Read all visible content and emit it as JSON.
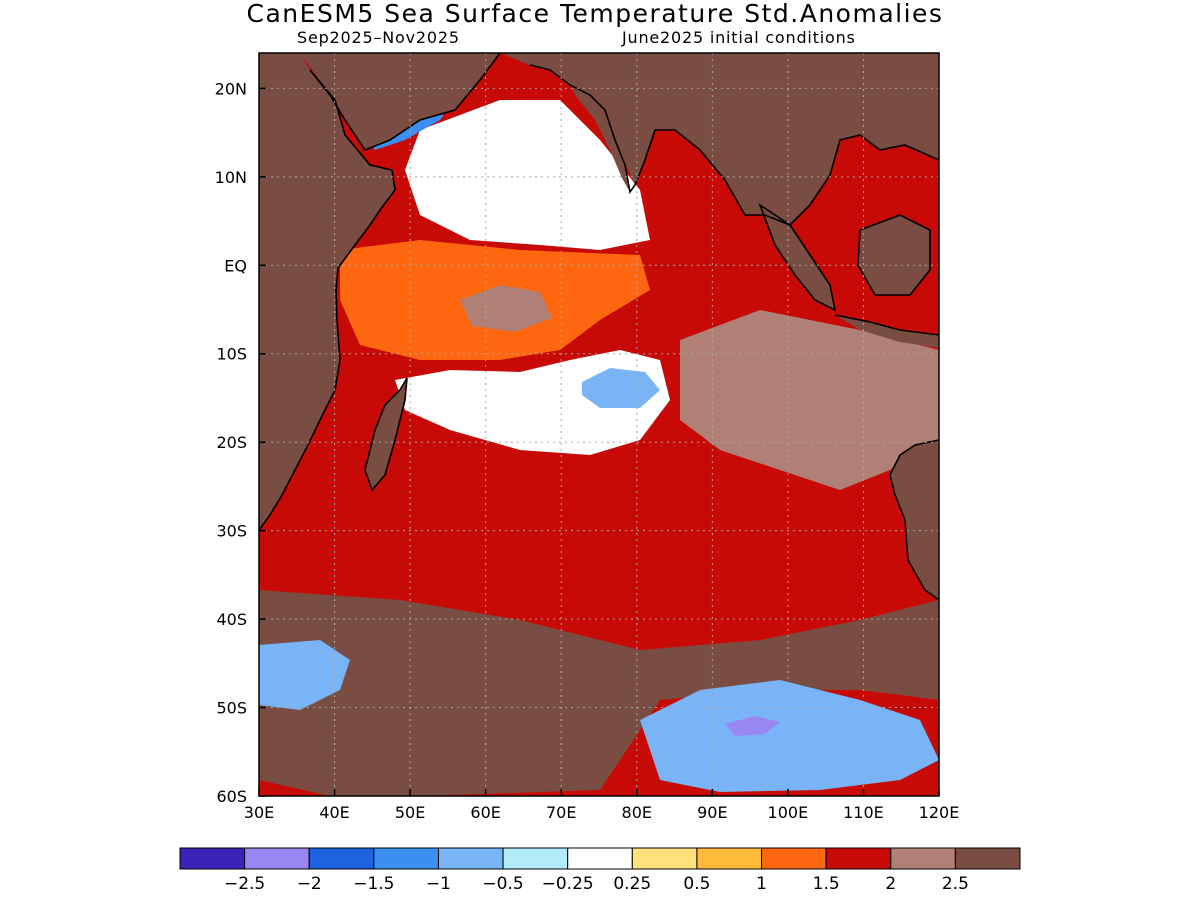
{
  "title": "CanESM5 Sea Surface Temperature Std.Anomalies",
  "subtitle_left": "Sep2025–Nov2025",
  "subtitle_right": "June2025 initial conditions",
  "map": {
    "lon_range": [
      30,
      120
    ],
    "lat_range": [
      -60,
      24
    ],
    "lon_ticks": [
      {
        "value": 30,
        "label": "30E"
      },
      {
        "value": 40,
        "label": "40E"
      },
      {
        "value": 50,
        "label": "50E"
      },
      {
        "value": 60,
        "label": "60E"
      },
      {
        "value": 70,
        "label": "70E"
      },
      {
        "value": 80,
        "label": "80E"
      },
      {
        "value": 90,
        "label": "90E"
      },
      {
        "value": 100,
        "label": "100E"
      },
      {
        "value": 110,
        "label": "110E"
      },
      {
        "value": 120,
        "label": "120E"
      }
    ],
    "lat_ticks": [
      {
        "value": 20,
        "label": "20N"
      },
      {
        "value": 10,
        "label": "10N"
      },
      {
        "value": 0,
        "label": "EQ"
      },
      {
        "value": -10,
        "label": "10S"
      },
      {
        "value": -20,
        "label": "20S"
      },
      {
        "value": -30,
        "label": "30S"
      },
      {
        "value": -40,
        "label": "40S"
      },
      {
        "value": -50,
        "label": "50S"
      },
      {
        "value": -60,
        "label": "60S"
      }
    ],
    "land_color": "#7a4d43",
    "coast_color": "#000000"
  },
  "colorbar": {
    "colors": [
      "#3a23b8",
      "#9a86f2",
      "#1e62e0",
      "#3c8ff0",
      "#78b4f6",
      "#b2ecfb",
      "#ffffff",
      "#ffe07a",
      "#ffba3a",
      "#ff6610",
      "#c80a06",
      "#b07f76",
      "#7a4d43"
    ],
    "labels": [
      "−2.5",
      "−2",
      "−1.5",
      "−1",
      "−0.5",
      "−0.25",
      "0.25",
      "0.5",
      "1",
      "1.5",
      "2",
      "2.5"
    ]
  },
  "anomaly_regions": [
    {
      "name": "basin-background",
      "level": 1.5
    },
    {
      "name": "central-eastern-warm",
      "level": 1.5
    },
    {
      "name": "arabian-sea-cool",
      "level": 0.0
    },
    {
      "name": "equatorial-west-moderate",
      "level": 1.0
    },
    {
      "name": "equatorial-mid-warm",
      "level": 2.0
    },
    {
      "name": "south-tropical-neutral",
      "level": 0.0
    },
    {
      "name": "south-tropical-cool-patch",
      "level": -1.0
    },
    {
      "name": "eastern-strong-warm",
      "level": 2.0
    },
    {
      "name": "southern-ocean-high",
      "level": 2.5
    },
    {
      "name": "southern-ocean-cool",
      "level": -1.0
    },
    {
      "name": "southern-ocean-cold-core",
      "level": -2.5
    },
    {
      "name": "southwest-cool",
      "level": -1.0
    },
    {
      "name": "red-sea-cool",
      "level": -1.5
    }
  ]
}
